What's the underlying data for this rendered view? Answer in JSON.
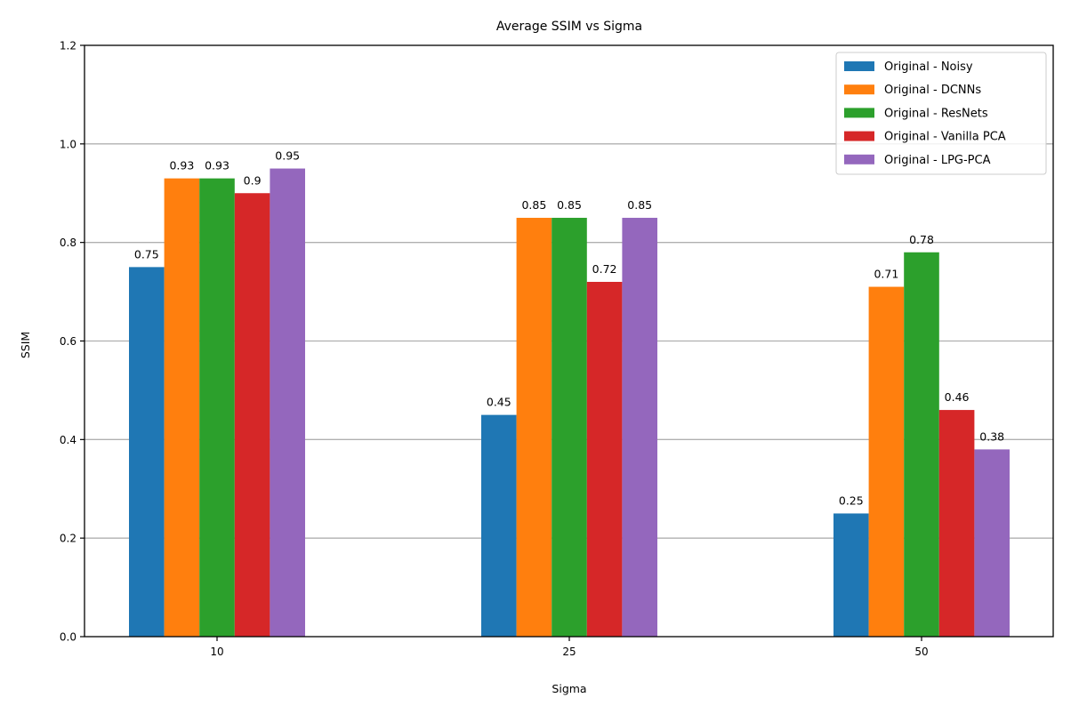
{
  "chart_data": {
    "type": "bar",
    "title": "Average SSIM vs Sigma",
    "xlabel": "Sigma",
    "ylabel": "SSIM",
    "categories": [
      "10",
      "25",
      "50"
    ],
    "ylim": [
      0,
      1.2
    ],
    "yticks": [
      "0.0",
      "0.2",
      "0.4",
      "0.6",
      "0.8",
      "1.0",
      "1.2"
    ],
    "grid": "horizontal",
    "legend_position": "top-right",
    "series": [
      {
        "name": "Original - Noisy",
        "color": "#1f77b4",
        "values": [
          0.75,
          0.45,
          0.25
        ]
      },
      {
        "name": "Original - DCNNs",
        "color": "#ff7f0e",
        "values": [
          0.93,
          0.85,
          0.71
        ]
      },
      {
        "name": "Original - ResNets",
        "color": "#2ca02c",
        "values": [
          0.93,
          0.85,
          0.78
        ]
      },
      {
        "name": "Original - Vanilla PCA",
        "color": "#d62728",
        "values": [
          0.9,
          0.72,
          0.46
        ]
      },
      {
        "name": "Original - LPG-PCA",
        "color": "#9467bd",
        "values": [
          0.95,
          0.85,
          0.38
        ]
      }
    ]
  }
}
